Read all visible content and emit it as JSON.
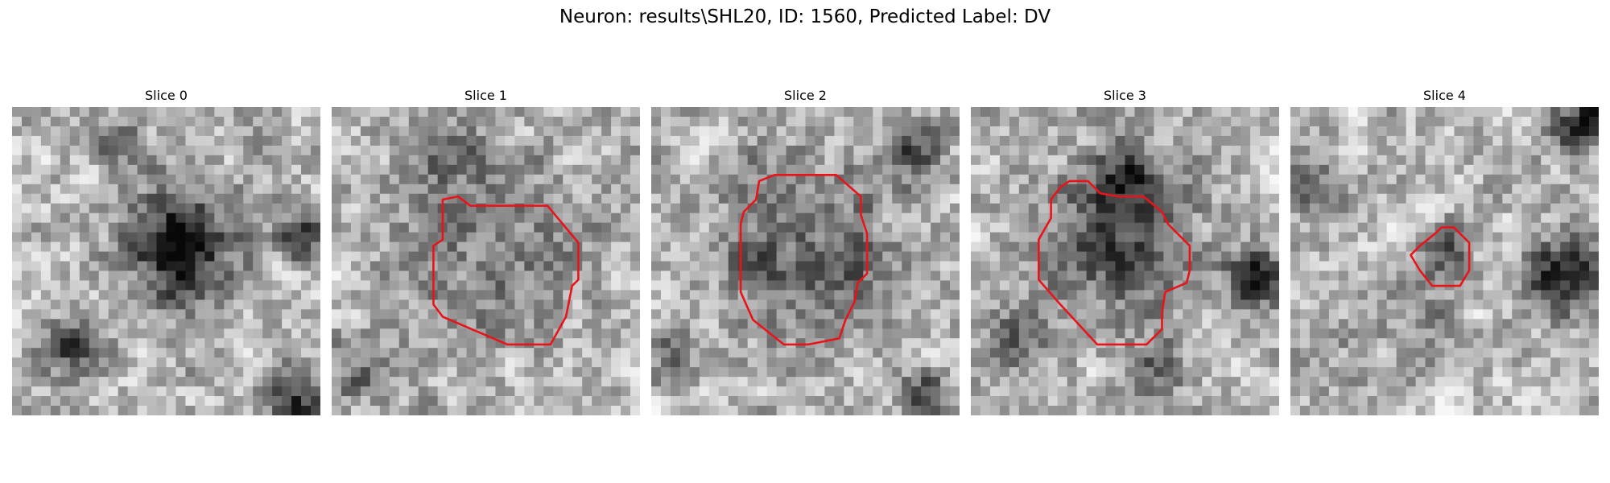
{
  "figure": {
    "title": "Neuron: results\\SHL20, ID: 1560, Predicted Label: DV"
  },
  "panels": [
    {
      "title": "Slice 0",
      "seed": 11,
      "blobs": [
        [
          0.55,
          0.45,
          0.22,
          -0.7
        ],
        [
          0.2,
          0.78,
          0.12,
          -0.4
        ],
        [
          0.35,
          0.12,
          0.1,
          -0.3
        ],
        [
          0.95,
          0.42,
          0.1,
          -0.45
        ],
        [
          0.92,
          0.95,
          0.12,
          -0.5
        ]
      ],
      "contour": []
    },
    {
      "title": "Slice 1",
      "seed": 23,
      "blobs": [
        [
          0.5,
          0.45,
          0.3,
          -0.45
        ],
        [
          0.5,
          0.45,
          0.2,
          0.25
        ],
        [
          0.35,
          0.12,
          0.12,
          -0.3
        ],
        [
          0.1,
          0.85,
          0.15,
          -0.3
        ]
      ],
      "contour": [
        [
          0.36,
          0.3
        ],
        [
          0.41,
          0.29
        ],
        [
          0.45,
          0.32
        ],
        [
          0.7,
          0.32
        ],
        [
          0.8,
          0.44
        ],
        [
          0.8,
          0.56
        ],
        [
          0.78,
          0.58
        ],
        [
          0.76,
          0.68
        ],
        [
          0.71,
          0.77
        ],
        [
          0.57,
          0.77
        ],
        [
          0.36,
          0.68
        ],
        [
          0.33,
          0.64
        ],
        [
          0.33,
          0.45
        ],
        [
          0.36,
          0.43
        ],
        [
          0.36,
          0.33
        ]
      ]
    },
    {
      "title": "Slice 2",
      "seed": 37,
      "blobs": [
        [
          0.5,
          0.45,
          0.3,
          -0.55
        ],
        [
          0.5,
          0.42,
          0.18,
          0.3
        ],
        [
          0.85,
          0.15,
          0.12,
          -0.35
        ],
        [
          0.05,
          0.8,
          0.12,
          -0.3
        ],
        [
          0.88,
          0.93,
          0.1,
          -0.4
        ]
      ],
      "contour": [
        [
          0.35,
          0.24
        ],
        [
          0.4,
          0.22
        ],
        [
          0.6,
          0.22
        ],
        [
          0.68,
          0.29
        ],
        [
          0.68,
          0.35
        ],
        [
          0.7,
          0.41
        ],
        [
          0.7,
          0.54
        ],
        [
          0.67,
          0.57
        ],
        [
          0.66,
          0.63
        ],
        [
          0.63,
          0.69
        ],
        [
          0.61,
          0.75
        ],
        [
          0.51,
          0.77
        ],
        [
          0.43,
          0.77
        ],
        [
          0.33,
          0.69
        ],
        [
          0.29,
          0.6
        ],
        [
          0.29,
          0.38
        ],
        [
          0.3,
          0.34
        ],
        [
          0.34,
          0.3
        ]
      ]
    },
    {
      "title": "Slice 3",
      "seed": 53,
      "blobs": [
        [
          0.48,
          0.42,
          0.28,
          -0.45
        ],
        [
          0.5,
          0.22,
          0.12,
          -0.4
        ],
        [
          0.92,
          0.55,
          0.12,
          -0.55
        ],
        [
          0.15,
          0.75,
          0.12,
          -0.35
        ],
        [
          0.6,
          0.85,
          0.12,
          -0.35
        ]
      ],
      "contour": [
        [
          0.29,
          0.26
        ],
        [
          0.32,
          0.24
        ],
        [
          0.38,
          0.24
        ],
        [
          0.42,
          0.28
        ],
        [
          0.48,
          0.29
        ],
        [
          0.56,
          0.29
        ],
        [
          0.62,
          0.34
        ],
        [
          0.64,
          0.38
        ],
        [
          0.71,
          0.45
        ],
        [
          0.71,
          0.53
        ],
        [
          0.7,
          0.57
        ],
        [
          0.63,
          0.6
        ],
        [
          0.62,
          0.67
        ],
        [
          0.62,
          0.72
        ],
        [
          0.57,
          0.77
        ],
        [
          0.41,
          0.77
        ],
        [
          0.29,
          0.64
        ],
        [
          0.22,
          0.56
        ],
        [
          0.22,
          0.43
        ],
        [
          0.26,
          0.36
        ],
        [
          0.26,
          0.3
        ]
      ]
    },
    {
      "title": "Slice 4",
      "seed": 71,
      "blobs": [
        [
          0.5,
          0.48,
          0.1,
          -0.4
        ],
        [
          0.32,
          0.75,
          0.18,
          -0.3
        ],
        [
          0.32,
          0.75,
          0.1,
          0.25
        ],
        [
          0.88,
          0.55,
          0.15,
          -0.6
        ],
        [
          0.05,
          0.25,
          0.12,
          -0.4
        ],
        [
          0.95,
          0.05,
          0.12,
          -0.5
        ]
      ],
      "contour": [
        [
          0.49,
          0.39
        ],
        [
          0.53,
          0.39
        ],
        [
          0.58,
          0.44
        ],
        [
          0.58,
          0.53
        ],
        [
          0.55,
          0.58
        ],
        [
          0.46,
          0.58
        ],
        [
          0.42,
          0.53
        ],
        [
          0.39,
          0.48
        ],
        [
          0.42,
          0.45
        ],
        [
          0.47,
          0.41
        ]
      ]
    }
  ]
}
